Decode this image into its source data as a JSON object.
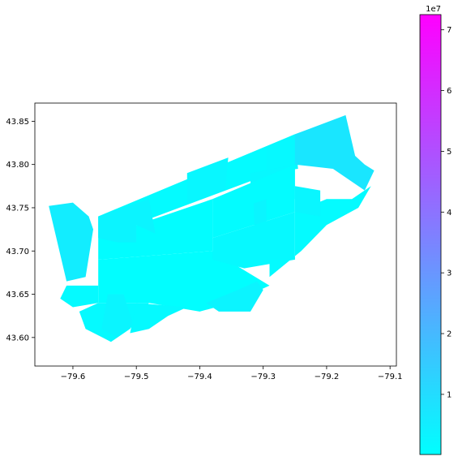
{
  "chart_data": [
    {
      "type": "choropleth-map",
      "title": "",
      "xlabel": "",
      "ylabel": "",
      "xlim": [
        -79.66,
        -79.09
      ],
      "ylim": [
        43.567,
        43.871
      ],
      "x_ticks": [
        -79.6,
        -79.5,
        -79.4,
        -79.3,
        -79.2,
        -79.1
      ],
      "x_tick_labels": [
        "−79.6",
        "−79.5",
        "−79.4",
        "−79.3",
        "−79.2",
        "−79.1"
      ],
      "y_ticks": [
        43.6,
        43.65,
        43.7,
        43.75,
        43.8,
        43.85
      ],
      "y_tick_labels": [
        "43.60",
        "43.65",
        "43.70",
        "43.75",
        "43.80",
        "43.85"
      ],
      "grid": false,
      "colormap": "cool",
      "regions": [
        {
          "value": 1200000,
          "boundary": [
            [
              -79.56,
              43.74
            ],
            [
              -79.25,
              43.835
            ],
            [
              -79.25,
              43.8
            ],
            [
              -79.56,
              43.715
            ]
          ]
        },
        {
          "value": 2300000,
          "boundary": [
            [
              -79.42,
              43.79
            ],
            [
              -79.355,
              43.808
            ],
            [
              -79.36,
              43.77
            ],
            [
              -79.42,
              43.755
            ]
          ]
        },
        {
          "value": 1900000,
          "boundary": [
            [
              -79.295,
              43.82
            ],
            [
              -79.25,
              43.835
            ],
            [
              -79.245,
              43.795
            ],
            [
              -79.295,
              43.79
            ]
          ]
        },
        {
          "value": 2000000,
          "boundary": [
            [
              -79.32,
              43.79
            ],
            [
              -79.25,
              43.8
            ],
            [
              -79.25,
              43.76
            ],
            [
              -79.32,
              43.765
            ]
          ]
        },
        {
          "value": 600000,
          "boundary": [
            [
              -79.56,
              43.715
            ],
            [
              -79.38,
              43.76
            ],
            [
              -79.38,
              43.7
            ],
            [
              -79.56,
              43.69
            ]
          ]
        },
        {
          "value": 1000000,
          "boundary": [
            [
              -79.38,
              43.76
            ],
            [
              -79.25,
              43.8
            ],
            [
              -79.25,
              43.745
            ],
            [
              -79.38,
              43.715
            ]
          ]
        },
        {
          "value": 2800000,
          "boundary": [
            [
              -79.315,
              43.755
            ],
            [
              -79.295,
              43.76
            ],
            [
              -79.295,
              43.69
            ],
            [
              -79.312,
              43.69
            ]
          ]
        },
        {
          "value": 400000,
          "boundary": [
            [
              -79.56,
              43.69
            ],
            [
              -79.38,
              43.7
            ],
            [
              -79.29,
              43.66
            ],
            [
              -79.35,
              43.64
            ],
            [
              -79.4,
              43.63
            ],
            [
              -79.48,
              43.64
            ],
            [
              -79.56,
              43.64
            ]
          ]
        },
        {
          "value": 1800000,
          "boundary": [
            [
              -79.38,
              43.715
            ],
            [
              -79.25,
              43.745
            ],
            [
              -79.25,
              43.69
            ],
            [
              -79.33,
              43.68
            ],
            [
              -79.38,
              43.69
            ]
          ]
        },
        {
          "value": 1400000,
          "boundary": [
            [
              -79.61,
              43.66
            ],
            [
              -79.56,
              43.66
            ],
            [
              -79.56,
              43.64
            ],
            [
              -79.6,
              43.635
            ],
            [
              -79.62,
              43.645
            ]
          ]
        },
        {
          "value": 1600000,
          "boundary": [
            [
              -79.56,
              43.64
            ],
            [
              -79.48,
              43.64
            ],
            [
              -79.51,
              43.61
            ],
            [
              -79.54,
              43.595
            ],
            [
              -79.58,
              43.61
            ],
            [
              -79.59,
              43.63
            ]
          ]
        },
        {
          "value": 2900000,
          "boundary": [
            [
              -79.545,
              43.65
            ],
            [
              -79.52,
              43.65
            ],
            [
              -79.505,
              43.615
            ],
            [
              -79.53,
              43.6
            ],
            [
              -79.555,
              43.61
            ]
          ]
        },
        {
          "value": 1500000,
          "boundary": [
            [
              -79.5,
              43.64
            ],
            [
              -79.42,
              43.635
            ],
            [
              -79.45,
              43.625
            ],
            [
              -79.48,
              43.61
            ],
            [
              -79.51,
              43.605
            ]
          ]
        },
        {
          "value": 1300000,
          "boundary": [
            [
              -79.29,
              43.69
            ],
            [
              -79.25,
              43.69
            ],
            [
              -79.25,
              43.745
            ],
            [
              -79.2,
              43.76
            ],
            [
              -79.16,
              43.76
            ],
            [
              -79.13,
              43.775
            ],
            [
              -79.15,
              43.75
            ],
            [
              -79.2,
              43.73
            ],
            [
              -79.24,
              43.7
            ],
            [
              -79.29,
              43.67
            ]
          ]
        },
        {
          "value": 2600000,
          "boundary": [
            [
              -79.25,
              43.745
            ],
            [
              -79.21,
              43.74
            ],
            [
              -79.21,
              43.77
            ],
            [
              -79.25,
              43.775
            ]
          ]
        },
        {
          "value": 3100000,
          "boundary": [
            [
              -79.34,
              43.655
            ],
            [
              -79.31,
              43.665
            ],
            [
              -79.3,
              43.655
            ],
            [
              -79.32,
              43.63
            ],
            [
              -79.37,
              43.63
            ],
            [
              -79.39,
              43.64
            ]
          ]
        },
        {
          "value": 3300000,
          "boundary": [
            [
              -79.56,
              43.74
            ],
            [
              -79.48,
              43.76
            ],
            [
              -79.47,
              43.72
            ],
            [
              -79.5,
              43.73
            ],
            [
              -79.5,
              43.71
            ],
            [
              -79.53,
              43.71
            ],
            [
              -79.56,
              43.715
            ]
          ]
        },
        {
          "value": 7200000,
          "boundary": [
            [
              -79.25,
              43.835
            ],
            [
              -79.17,
              43.857
            ],
            [
              -79.155,
              43.81
            ],
            [
              -79.14,
              43.8
            ],
            [
              -79.125,
              43.793
            ],
            [
              -79.14,
              43.77
            ],
            [
              -79.19,
              43.795
            ],
            [
              -79.25,
              43.8
            ]
          ]
        },
        {
          "value": 5300000,
          "boundary": [
            [
              -79.638,
              43.752
            ],
            [
              -79.6,
              43.756
            ],
            [
              -79.575,
              43.74
            ],
            [
              -79.568,
              43.725
            ],
            [
              -79.58,
              43.67
            ],
            [
              -79.61,
              43.665
            ]
          ]
        }
      ],
      "colorbar": {
        "min": 100000,
        "max": 72500000,
        "ticks": [
          1,
          2,
          3,
          4,
          5,
          6,
          7
        ],
        "tick_labels": [
          "1",
          "2",
          "3",
          "4",
          "5",
          "6",
          "7"
        ],
        "scale_label": "1e7",
        "stops": [
          "#00ffff",
          "#ff00ff"
        ]
      }
    }
  ]
}
